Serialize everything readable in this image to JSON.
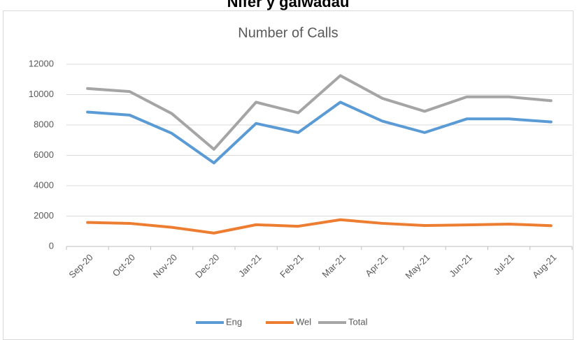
{
  "heading": "Nifer y galwadau",
  "chart_data": {
    "type": "line",
    "title": "Number of Calls",
    "categories": [
      "Sep-20",
      "Oct-20",
      "Nov-20",
      "Dec-20",
      "Jan-21",
      "Feb-21",
      "Mar-21",
      "Apr-21",
      "May-21",
      "Jun-21",
      "Jul-21",
      "Aug-21"
    ],
    "series": [
      {
        "name": "Eng",
        "color": "#5b9bd5",
        "values": [
          8850,
          8650,
          7450,
          5500,
          8100,
          7500,
          9500,
          8250,
          7500,
          8400,
          8400,
          8200
        ]
      },
      {
        "name": "Wel",
        "color": "#ed7d31",
        "values": [
          1580,
          1520,
          1260,
          880,
          1430,
          1330,
          1760,
          1520,
          1380,
          1420,
          1470,
          1370
        ]
      },
      {
        "name": "Total",
        "color": "#a5a5a5",
        "values": [
          10400,
          10200,
          8750,
          6400,
          9500,
          8800,
          11250,
          9750,
          8900,
          9850,
          9850,
          9600
        ]
      }
    ],
    "ylim": [
      0,
      12000
    ],
    "yticks": [
      0,
      2000,
      4000,
      6000,
      8000,
      10000,
      12000
    ],
    "grid": true,
    "legend": "bottom"
  }
}
